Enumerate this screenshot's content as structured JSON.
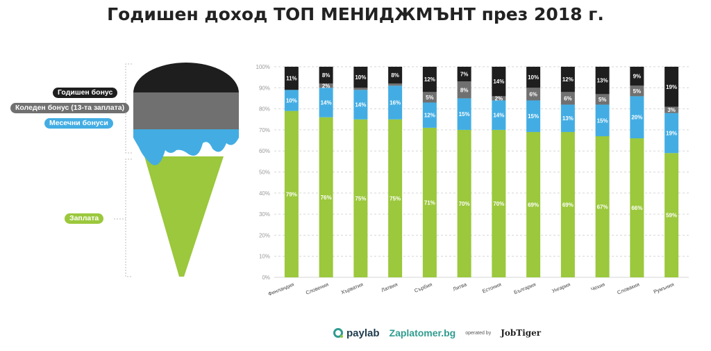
{
  "title": "Годишен доход ТОП МЕНИДЖМЪНТ през 2018 г.",
  "legend": {
    "annual_bonus": "Годишен бонус",
    "christmas_bonus": "Коледен бонус (13-та заплата)",
    "monthly_bonus": "Месечни бонуси",
    "salary": "Заплата"
  },
  "colors": {
    "salary": "#9bc83c",
    "monthly": "#43ade3",
    "christmas": "#707070",
    "annual": "#1e1e1e"
  },
  "footer": {
    "brand1": "paylab",
    "brand2": "Zaplatomer.bg",
    "operated": "operated by",
    "brand3": "JobTiger"
  },
  "chart_data": {
    "type": "bar",
    "stacked": true,
    "ylim": [
      0,
      100
    ],
    "y_ticks": [
      "0%",
      "10%",
      "20%",
      "30%",
      "40%",
      "50%",
      "60%",
      "70%",
      "80%",
      "90%",
      "100%"
    ],
    "categories": [
      "Финландия",
      "Словения",
      "Хърватия",
      "Латвия",
      "Сърбия",
      "Литва",
      "Естония",
      "България",
      "Унгария",
      "Чехия",
      "Словакия",
      "Румъния"
    ],
    "series": [
      {
        "name": "Заплата",
        "key": "salary",
        "values": [
          79,
          76,
          75,
          75,
          71,
          70,
          70,
          69,
          69,
          67,
          66,
          59
        ],
        "labels": [
          "79%",
          "76%",
          "75%",
          "75%",
          "71%",
          "70%",
          "70%",
          "69%",
          "69%",
          "67%",
          "66%",
          "59%"
        ]
      },
      {
        "name": "Месечни бонуси",
        "key": "monthly",
        "values": [
          10,
          14,
          14,
          16,
          12,
          15,
          14,
          15,
          13,
          15,
          20,
          19
        ],
        "labels": [
          "10%",
          "14%",
          "14%",
          "16%",
          "12%",
          "15%",
          "14%",
          "15%",
          "13%",
          "15%",
          "20%",
          "19%"
        ]
      },
      {
        "name": "Коледен бонус (13-та заплата)",
        "key": "christmas",
        "values": [
          0,
          2,
          1,
          1,
          5,
          8,
          2,
          6,
          6,
          5,
          5,
          3
        ],
        "labels": [
          "",
          "2%",
          "",
          "",
          "5%",
          "8%",
          "2%",
          "6%",
          "6%",
          "5%",
          "5%",
          "3%"
        ]
      },
      {
        "name": "Годишен бонус",
        "key": "annual",
        "values": [
          11,
          8,
          10,
          8,
          12,
          7,
          14,
          10,
          12,
          13,
          9,
          19
        ],
        "labels": [
          "11%",
          "8%",
          "10%",
          "8%",
          "12%",
          "7%",
          "14%",
          "10%",
          "12%",
          "13%",
          "9%",
          "19%"
        ]
      }
    ]
  }
}
